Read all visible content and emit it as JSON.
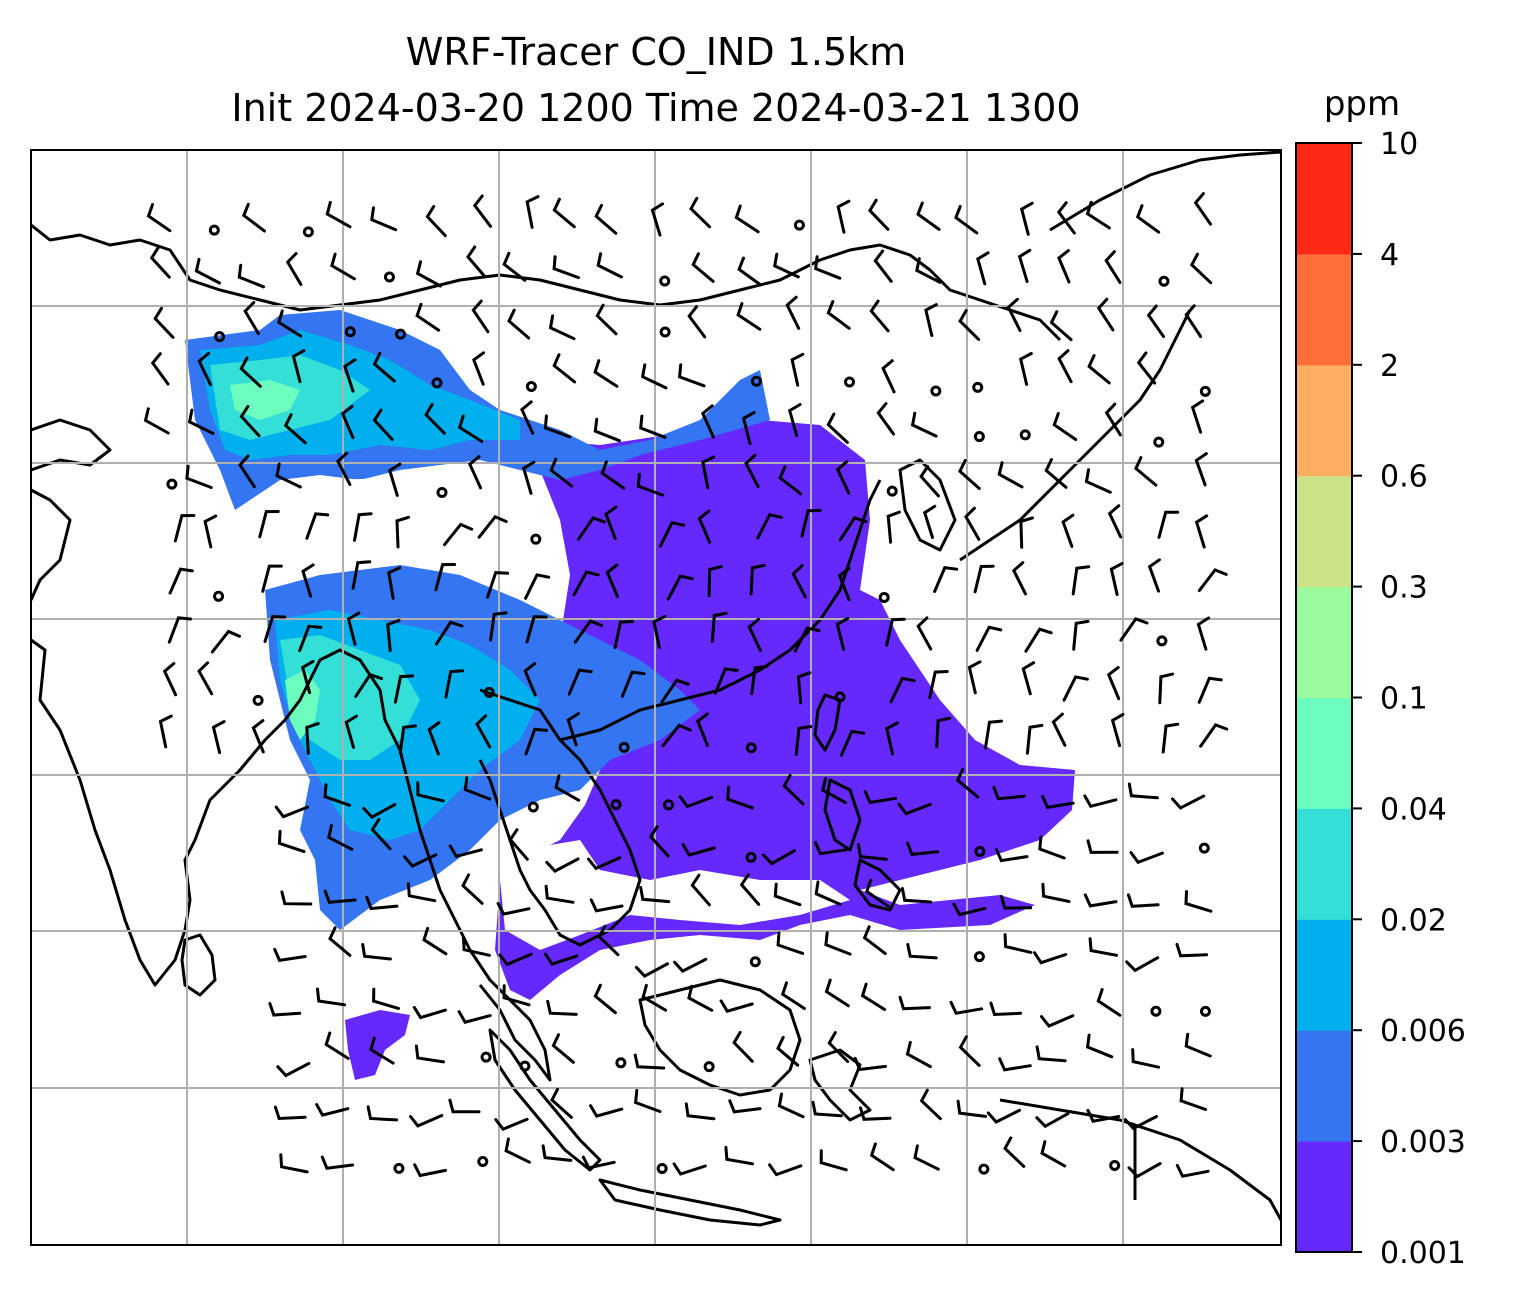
{
  "map": {
    "title_line1": "WRF-Tracer CO_IND 1.5km",
    "title_line2": "Init 2024-03-20 1200 Time 2024-03-21 1300",
    "field": "CO_IND tracer concentration",
    "overlay": "wind barbs",
    "region": "South and East Asia, Maritime Continent",
    "colors": {
      "coastline": "#000000",
      "gridline": "#b0b0b0",
      "frame": "#000000"
    }
  },
  "colorbar": {
    "unit": "ppm",
    "levels": [
      "0.001",
      "0.003",
      "0.006",
      "0.02",
      "0.04",
      "0.1",
      "0.3",
      "0.6",
      "2",
      "4",
      "10"
    ],
    "colors": [
      "#6629fd",
      "#3475f1",
      "#00b0ee",
      "#33dfd6",
      "#6dfdbe",
      "#9bfa9d",
      "#cbe287",
      "#fdae61",
      "#fe6e3b",
      "#fe2a18"
    ]
  }
}
